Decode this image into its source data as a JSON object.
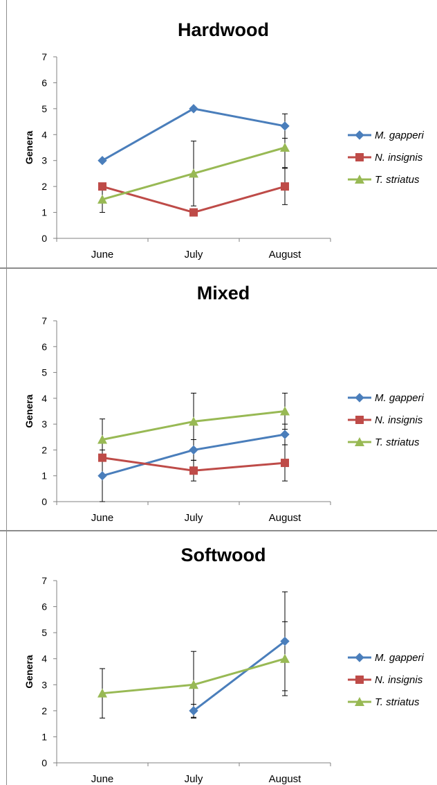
{
  "colors": {
    "m_gapperi": "#4a7ebb",
    "n_insignis": "#be4b48",
    "t_striatus": "#98b954",
    "axis": "#808080",
    "error_bar": "#000000"
  },
  "chart_data": [
    {
      "type": "line",
      "title": "Hardwood",
      "xlabel": "",
      "ylabel": "Genera",
      "categories": [
        "June",
        "July",
        "August"
      ],
      "ylim": [
        0,
        7
      ],
      "yticks": [
        "0",
        "1",
        "2",
        "3",
        "4",
        "5",
        "6",
        "7"
      ],
      "legend_position": "right",
      "series": [
        {
          "name": "M. gapperi",
          "marker": "diamond",
          "color_key": "m_gapperi",
          "values": [
            3,
            5,
            4.33
          ],
          "error": [
            null,
            null,
            0.47
          ]
        },
        {
          "name": "N. insignis",
          "marker": "square",
          "color_key": "n_insignis",
          "values": [
            2,
            1,
            2
          ],
          "error": [
            null,
            null,
            0.7
          ]
        },
        {
          "name": "T. striatus",
          "marker": "triangle",
          "color_key": "t_striatus",
          "values": [
            1.5,
            2.5,
            3.5
          ],
          "error": [
            0.5,
            1.25,
            0.77
          ]
        }
      ]
    },
    {
      "type": "line",
      "title": "Mixed",
      "xlabel": "",
      "ylabel": "Genera",
      "categories": [
        "June",
        "July",
        "August"
      ],
      "ylim": [
        0,
        7
      ],
      "yticks": [
        "0",
        "1",
        "2",
        "3",
        "4",
        "5",
        "6",
        "7"
      ],
      "legend_position": "right",
      "series": [
        {
          "name": "M. gapperi",
          "marker": "diamond",
          "color_key": "m_gapperi",
          "values": [
            1,
            2,
            2.6
          ],
          "error": [
            1,
            0.4,
            0.4
          ]
        },
        {
          "name": "N. insignis",
          "marker": "square",
          "color_key": "n_insignis",
          "values": [
            1.7,
            1.2,
            1.5
          ],
          "error": [
            null,
            0.4,
            0.7
          ]
        },
        {
          "name": "T. striatus",
          "marker": "triangle",
          "color_key": "t_striatus",
          "values": [
            2.4,
            3.1,
            3.5
          ],
          "error": [
            0.8,
            1.1,
            0.7
          ]
        }
      ]
    },
    {
      "type": "line",
      "title": "Softwood",
      "xlabel": "",
      "ylabel": "Genera",
      "categories": [
        "June",
        "July",
        "August"
      ],
      "ylim": [
        0,
        7
      ],
      "yticks": [
        "0",
        "1",
        "2",
        "3",
        "4",
        "5",
        "6",
        "7"
      ],
      "legend_position": "right",
      "series": [
        {
          "name": "M. gapperi",
          "marker": "diamond",
          "color_key": "m_gapperi",
          "values": [
            null,
            2,
            4.67
          ],
          "error": [
            null,
            0.25,
            1.9
          ]
        },
        {
          "name": "N. insignis",
          "marker": "square",
          "color_key": "n_insignis",
          "values": [
            null,
            null,
            null
          ],
          "error": [
            null,
            null,
            null
          ]
        },
        {
          "name": "T. striatus",
          "marker": "triangle",
          "color_key": "t_striatus",
          "values": [
            2.67,
            3,
            4
          ],
          "error": [
            0.95,
            1.28,
            1.42
          ]
        }
      ]
    }
  ]
}
